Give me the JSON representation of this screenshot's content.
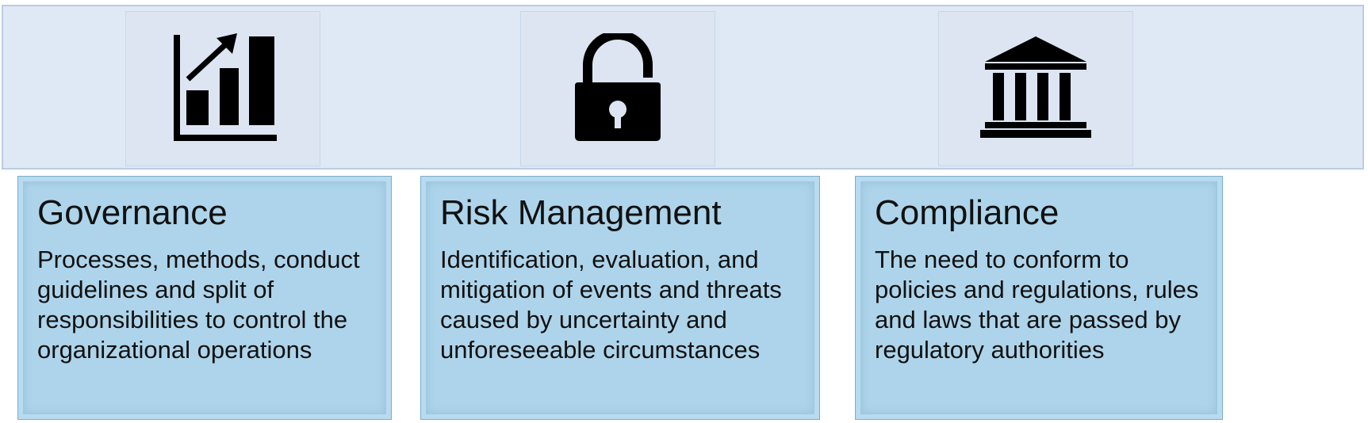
{
  "pillars": [
    {
      "icon": "bar-chart-growth-icon",
      "title": "Governance",
      "description": "Processes, methods, conduct guidelines and split of responsibilities to control the organizational operations"
    },
    {
      "icon": "unlocked-padlock-icon",
      "title": "Risk Management",
      "description": "Identification, evaluation, and mitigation of events and threats caused by uncertainty and unforeseeable circumstances"
    },
    {
      "icon": "institution-building-icon",
      "title": "Compliance",
      "description": "The need to conform to policies and regulations, rules and laws that are passed by regulatory authorities"
    }
  ],
  "colors": {
    "banner": "#dfe8f5",
    "card": "#add4ea",
    "icon": "#000000",
    "text": "#111111"
  }
}
